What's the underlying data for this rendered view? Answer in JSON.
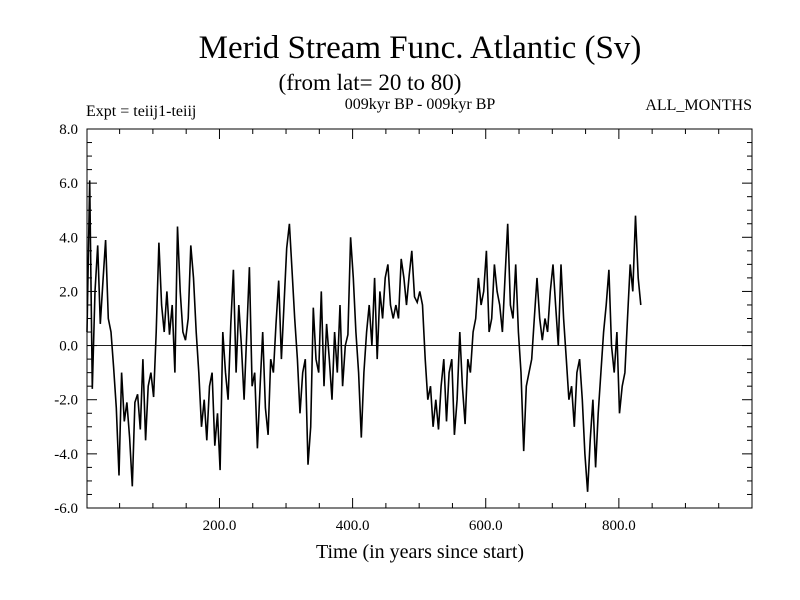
{
  "chart_data": {
    "type": "line",
    "title": "Merid Stream Func. Atlantic (Sv)",
    "subtitle": "(from lat= 20 to 80)",
    "experiment_label": "Expt = teiij1-teiij",
    "period_label": "009kyr BP - 009kyr BP",
    "months_label": "ALL_MONTHS",
    "xlabel": "Time (in years since start)",
    "ylabel": "",
    "xlim": [
      1,
      1000
    ],
    "ylim": [
      -6.0,
      8.0
    ],
    "x_ticks": [
      200,
      400,
      600,
      800
    ],
    "x_tick_labels": [
      "200.0",
      "400.0",
      "600.0",
      "800.0"
    ],
    "y_ticks": [
      -6,
      -4,
      -2,
      0,
      2,
      4,
      6,
      8
    ],
    "y_tick_labels": [
      "-6.0",
      "-4.0",
      "-2.0",
      "0.0",
      "2.0",
      "4.0",
      "6.0",
      "8.0"
    ],
    "zero_line": true,
    "grid": false,
    "series": [
      {
        "name": "",
        "x_start": 1,
        "x_step": 4,
        "values": [
          0.5,
          6.1,
          -1.6,
          2.0,
          3.7,
          0.8,
          2.4,
          3.9,
          1.0,
          0.5,
          -0.8,
          -2.3,
          -4.8,
          -1.0,
          -2.8,
          -2.1,
          -3.4,
          -5.2,
          -2.1,
          -1.8,
          -3.1,
          -0.5,
          -3.5,
          -1.5,
          -1.0,
          -1.9,
          0.5,
          3.8,
          1.5,
          0.5,
          2.0,
          0.4,
          1.5,
          -1.0,
          4.4,
          2.0,
          0.5,
          0.2,
          1.0,
          3.7,
          2.5,
          0.5,
          -1.0,
          -3.0,
          -2.0,
          -3.5,
          -1.5,
          -1.0,
          -3.7,
          -2.5,
          -4.6,
          0.5,
          -1.0,
          -2.0,
          0.8,
          2.8,
          -1.0,
          1.5,
          0.0,
          -2.0,
          0.5,
          2.9,
          -1.5,
          -1.0,
          -3.8,
          -1.5,
          0.5,
          -2.3,
          -3.3,
          -0.5,
          -1.0,
          0.8,
          2.4,
          -0.5,
          1.5,
          3.6,
          4.5,
          2.8,
          1.0,
          -0.5,
          -2.5,
          -1.0,
          -0.5,
          -4.4,
          -3.0,
          1.4,
          -0.5,
          -1.0,
          2.0,
          -1.5,
          0.8,
          -0.5,
          -2.0,
          0.5,
          -1.0,
          1.5,
          -1.5,
          0.0,
          0.4,
          4.0,
          2.5,
          0.5,
          -1.0,
          -3.4,
          -1.0,
          0.5,
          1.5,
          0.0,
          2.5,
          -0.5,
          2.0,
          1.0,
          2.5,
          3.0,
          1.5,
          1.0,
          1.5,
          1.0,
          3.2,
          2.5,
          1.5,
          2.6,
          3.5,
          1.8,
          1.6,
          2.0,
          1.5,
          -0.5,
          -2.0,
          -1.5,
          -3.0,
          -2.0,
          -3.1,
          -1.5,
          -0.5,
          -2.8,
          -1.0,
          -0.5,
          -3.3,
          -2.0,
          0.5,
          -1.5,
          -2.9,
          -0.5,
          -1.0,
          0.5,
          1.0,
          2.5,
          1.5,
          2.0,
          3.5,
          0.5,
          1.0,
          3.0,
          2.0,
          1.5,
          0.5,
          2.5,
          4.5,
          1.5,
          1.0,
          3.0,
          0.5,
          -1.0,
          -3.9,
          -1.5,
          -1.0,
          -0.5,
          1.0,
          2.5,
          1.0,
          0.2,
          1.0,
          0.5,
          2.0,
          3.0,
          1.5,
          0.0,
          3.0,
          1.0,
          -0.5,
          -2.0,
          -1.5,
          -3.0,
          -1.0,
          -0.5,
          -2.0,
          -4.0,
          -5.4,
          -3.5,
          -2.0,
          -4.5,
          -2.5,
          -1.0,
          0.5,
          1.5,
          2.8,
          0.0,
          -1.0,
          0.5,
          -2.5,
          -1.5,
          -1.0,
          1.0,
          3.0,
          2.0,
          4.8,
          2.5,
          1.5
        ]
      }
    ]
  }
}
